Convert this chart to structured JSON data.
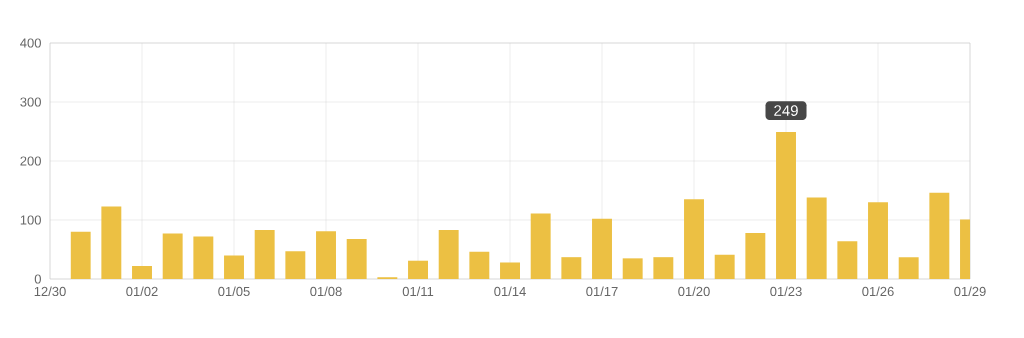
{
  "chart_data": {
    "type": "bar",
    "categories": [
      "12/30",
      null,
      null,
      "01/02",
      null,
      null,
      "01/05",
      null,
      null,
      "01/08",
      null,
      null,
      "01/11",
      null,
      null,
      "01/14",
      null,
      null,
      "01/17",
      null,
      null,
      "01/20",
      null,
      null,
      "01/23",
      null,
      null,
      "01/26",
      null,
      null,
      "01/29"
    ],
    "values": [
      null,
      80,
      123,
      22,
      77,
      72,
      40,
      83,
      47,
      81,
      68,
      3,
      31,
      83,
      46,
      28,
      111,
      37,
      102,
      35,
      37,
      135,
      41,
      78,
      249,
      138,
      64,
      130,
      37,
      146,
      101
    ],
    "color": "#ecc043",
    "ylim": [
      0,
      400
    ],
    "yticks": [
      0,
      100,
      200,
      300,
      400
    ],
    "grid": true,
    "annotations": [
      {
        "text": "249",
        "x": "01/23",
        "y": 249
      }
    ]
  }
}
